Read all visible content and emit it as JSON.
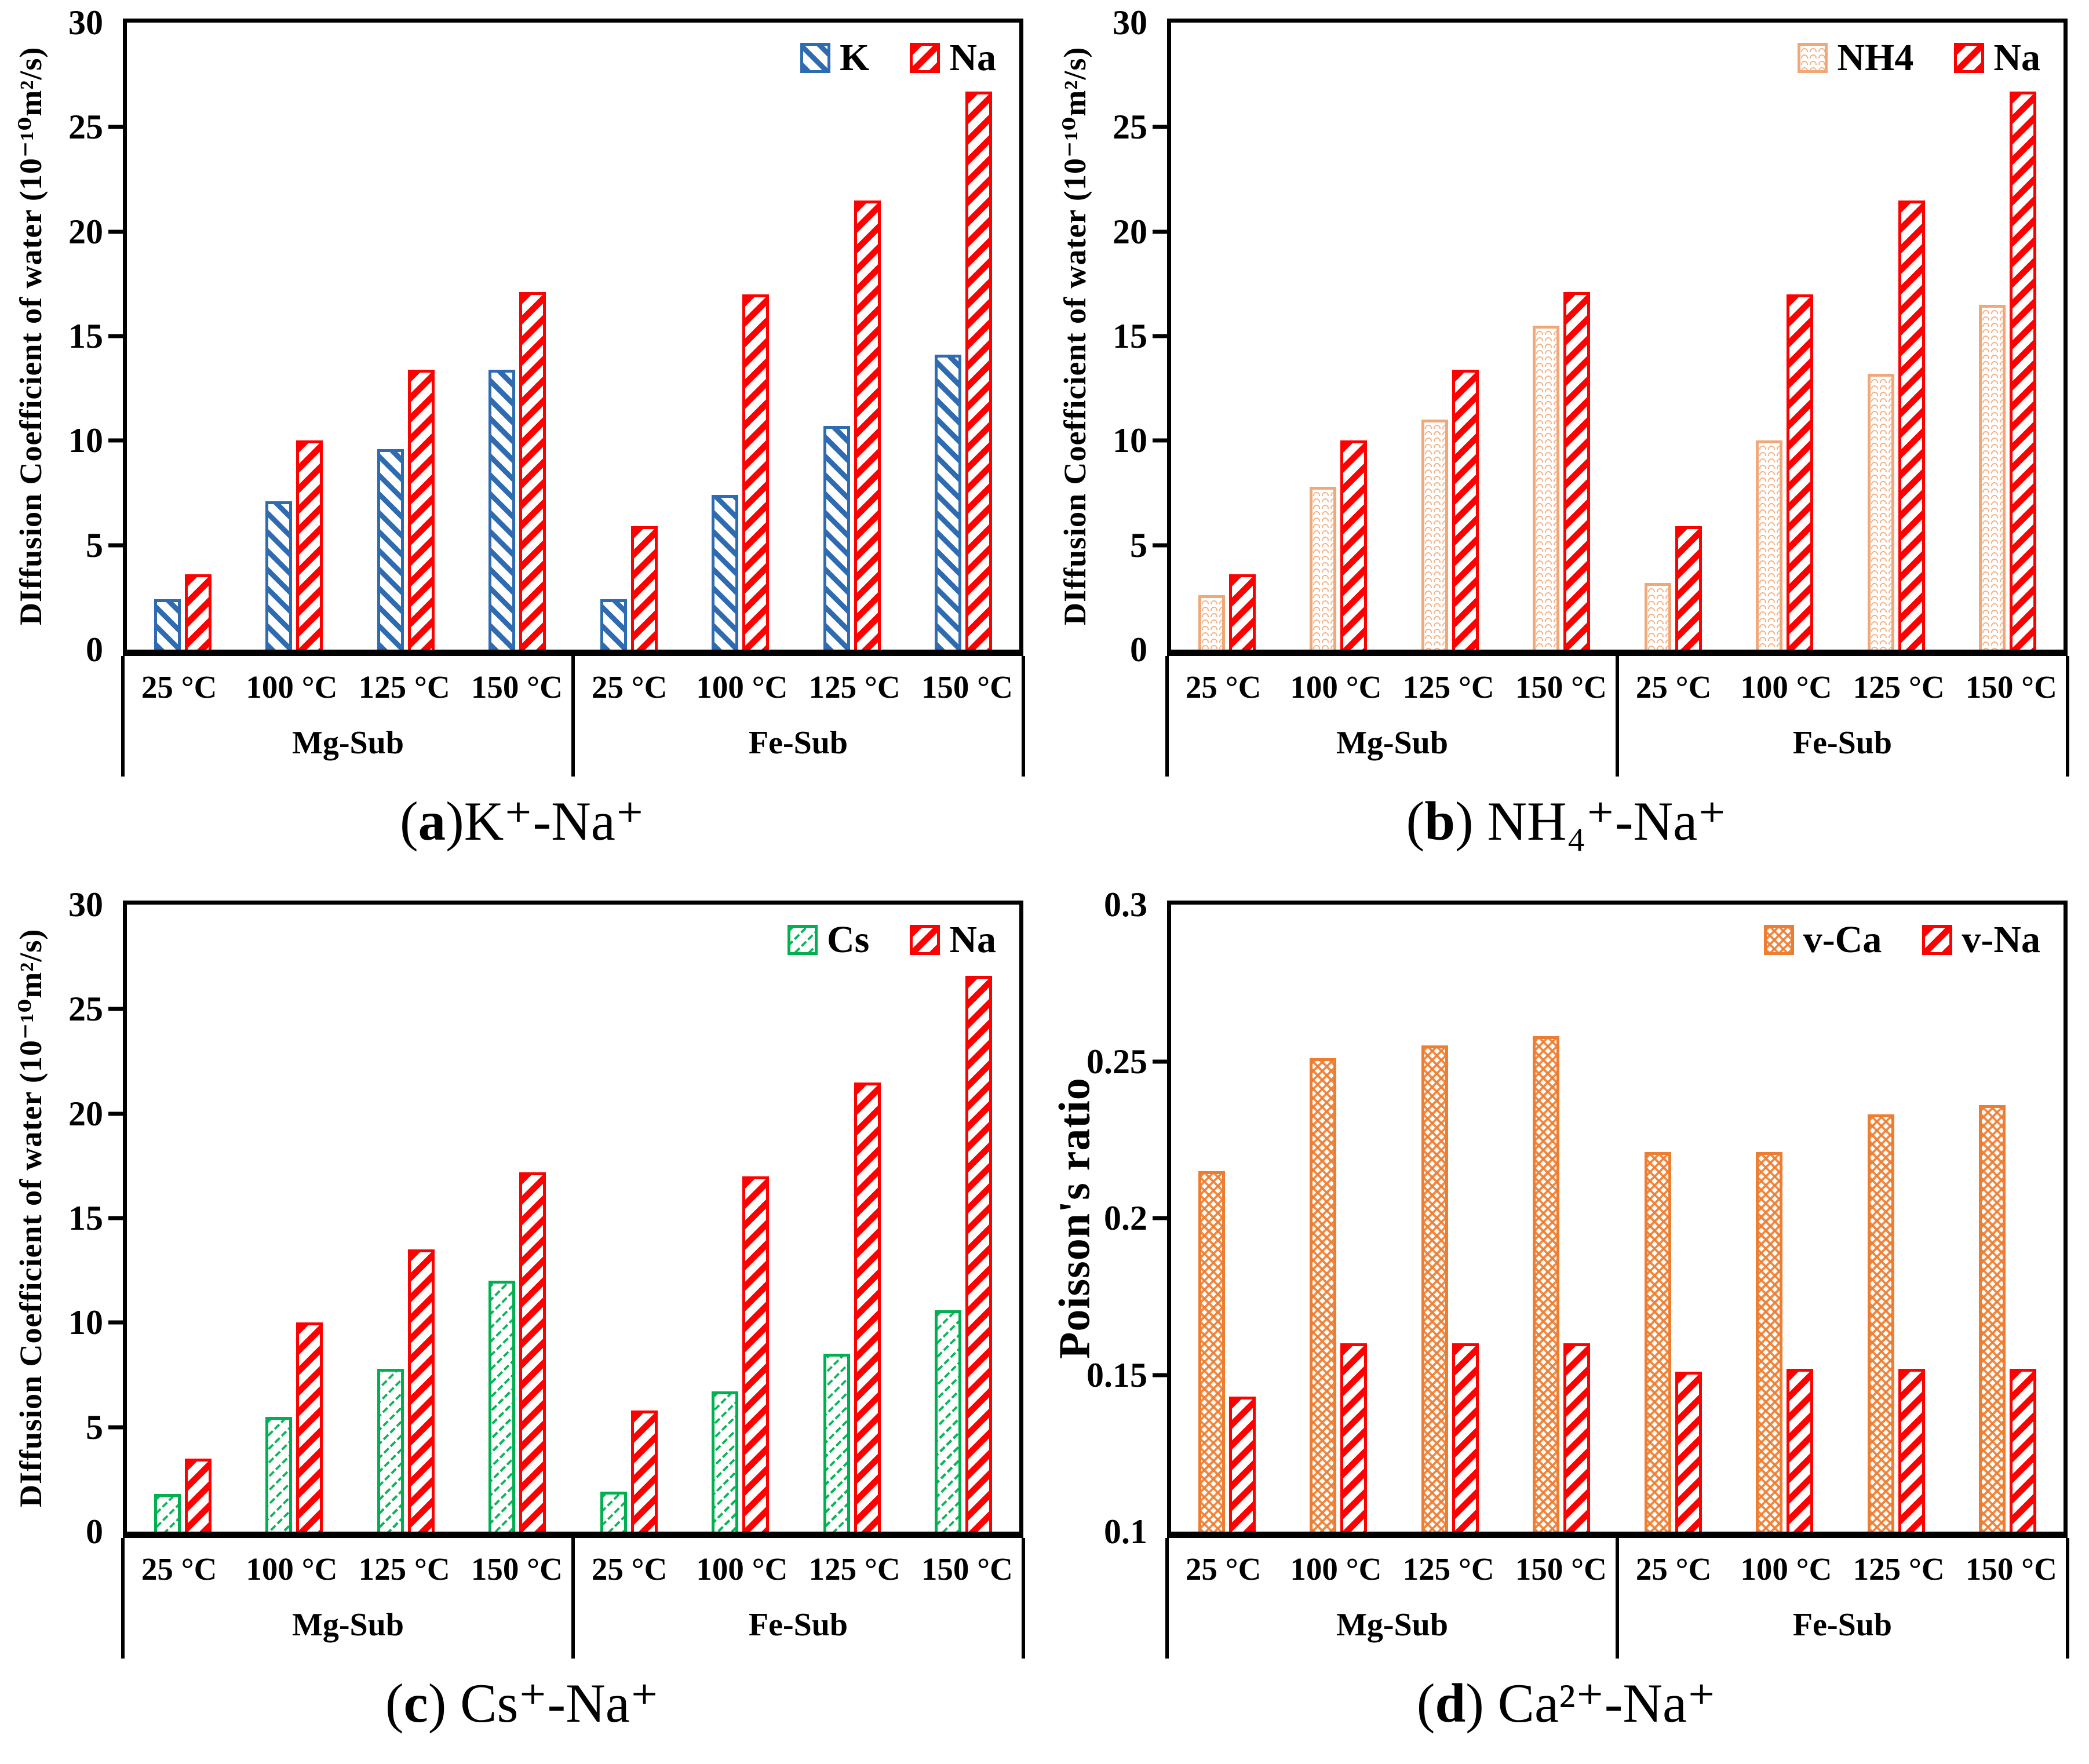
{
  "figure": {
    "background": "#ffffff",
    "legend_position": "top-right-inside",
    "grid": "off"
  },
  "colors": {
    "k_blue": "#2F6BB0",
    "na_red": "#FE0000",
    "nh4_tan": "#F4B183",
    "cs_green": "#00B050",
    "vca_orange": "#ED7D31",
    "axis": "#000000"
  },
  "chart_data": [
    {
      "type": "bar",
      "caption": {
        "pre": "(",
        "letter": "a",
        "post": ")K⁺-Na⁺"
      },
      "ylabel": "DIffusion Coefficient of water (10⁻¹⁰m²/s)",
      "ymin": 0,
      "ymax": 30,
      "yticks": [
        {
          "v": 0,
          "label": "0"
        },
        {
          "v": 5,
          "label": "5"
        },
        {
          "v": 10,
          "label": "10"
        },
        {
          "v": 15,
          "label": "15"
        },
        {
          "v": 20,
          "label": "20"
        },
        {
          "v": 25,
          "label": "25"
        },
        {
          "v": 30,
          "label": "30"
        }
      ],
      "groups": [
        "Mg-Sub",
        "Fe-Sub"
      ],
      "categories": [
        "25 °C",
        "100 °C",
        "125 °C",
        "150 °C",
        "25 °C",
        "100 °C",
        "125 °C",
        "150 °C"
      ],
      "series": [
        {
          "name": "K",
          "style": "k",
          "values": [
            2.4,
            7.1,
            9.6,
            13.4,
            2.4,
            7.4,
            10.7,
            14.1
          ]
        },
        {
          "name": "Na",
          "style": "na",
          "values": [
            3.6,
            10.0,
            13.4,
            17.1,
            5.9,
            17.0,
            21.5,
            26.7
          ]
        }
      ]
    },
    {
      "type": "bar",
      "caption": {
        "pre": "(",
        "letter": "b",
        "post": ") NH₄⁺-Na⁺"
      },
      "ylabel": "DIffusion Coefficient of water (10⁻¹⁰m²/s)",
      "ymin": 0,
      "ymax": 30,
      "yticks": [
        {
          "v": 0,
          "label": "0"
        },
        {
          "v": 5,
          "label": "5"
        },
        {
          "v": 10,
          "label": "10"
        },
        {
          "v": 15,
          "label": "15"
        },
        {
          "v": 20,
          "label": "20"
        },
        {
          "v": 25,
          "label": "25"
        },
        {
          "v": 30,
          "label": "30"
        }
      ],
      "groups": [
        "Mg-Sub",
        "Fe-Sub"
      ],
      "categories": [
        "25 °C",
        "100 °C",
        "125 °C",
        "150 °C",
        "25 °C",
        "100 °C",
        "125 °C",
        "150 °C"
      ],
      "series": [
        {
          "name": "NH4",
          "style": "nh4",
          "values": [
            2.6,
            7.8,
            11.0,
            15.5,
            3.2,
            10.0,
            13.2,
            16.5
          ]
        },
        {
          "name": "Na",
          "style": "na",
          "values": [
            3.6,
            10.0,
            13.4,
            17.1,
            5.9,
            17.0,
            21.5,
            26.7
          ]
        }
      ]
    },
    {
      "type": "bar",
      "caption": {
        "pre": "(",
        "letter": "c",
        "post": ") Cs⁺-Na⁺"
      },
      "ylabel": "DIffusion Coefficient of water (10⁻¹⁰m²/s)",
      "ymin": 0,
      "ymax": 30,
      "yticks": [
        {
          "v": 0,
          "label": "0"
        },
        {
          "v": 5,
          "label": "5"
        },
        {
          "v": 10,
          "label": "10"
        },
        {
          "v": 15,
          "label": "15"
        },
        {
          "v": 20,
          "label": "20"
        },
        {
          "v": 25,
          "label": "25"
        },
        {
          "v": 30,
          "label": "30"
        }
      ],
      "groups": [
        "Mg-Sub",
        "Fe-Sub"
      ],
      "categories": [
        "25 °C",
        "100 °C",
        "125 °C",
        "150 °C",
        "25 °C",
        "100 °C",
        "125 °C",
        "150 °C"
      ],
      "series": [
        {
          "name": "Cs",
          "style": "cs",
          "values": [
            1.8,
            5.5,
            7.8,
            12.0,
            1.9,
            6.7,
            8.5,
            10.6
          ]
        },
        {
          "name": "Na",
          "style": "na",
          "values": [
            3.5,
            10.0,
            13.5,
            17.2,
            5.8,
            17.0,
            21.5,
            26.6
          ]
        }
      ]
    },
    {
      "type": "bar",
      "caption": {
        "pre": "(",
        "letter": "d",
        "post": ") Ca²⁺-Na⁺"
      },
      "ylabel": "Poisson's ratio",
      "ymin": 0.1,
      "ymax": 0.3,
      "yticks": [
        {
          "v": 0.1,
          "label": "0.1"
        },
        {
          "v": 0.15,
          "label": "0.15"
        },
        {
          "v": 0.2,
          "label": "0.2"
        },
        {
          "v": 0.25,
          "label": "0.25"
        },
        {
          "v": 0.3,
          "label": "0.3"
        }
      ],
      "groups": [
        "Mg-Sub",
        "Fe-Sub"
      ],
      "categories": [
        "25 °C",
        "100 °C",
        "125 °C",
        "150 °C",
        "25 °C",
        "100 °C",
        "125 °C",
        "150 °C"
      ],
      "series": [
        {
          "name": "v-Ca",
          "style": "vca",
          "values": [
            0.215,
            0.251,
            0.255,
            0.258,
            0.221,
            0.221,
            0.233,
            0.236
          ]
        },
        {
          "name": "v-Na",
          "style": "vna",
          "values": [
            0.143,
            0.16,
            0.16,
            0.16,
            0.151,
            0.152,
            0.152,
            0.152
          ]
        }
      ]
    }
  ]
}
